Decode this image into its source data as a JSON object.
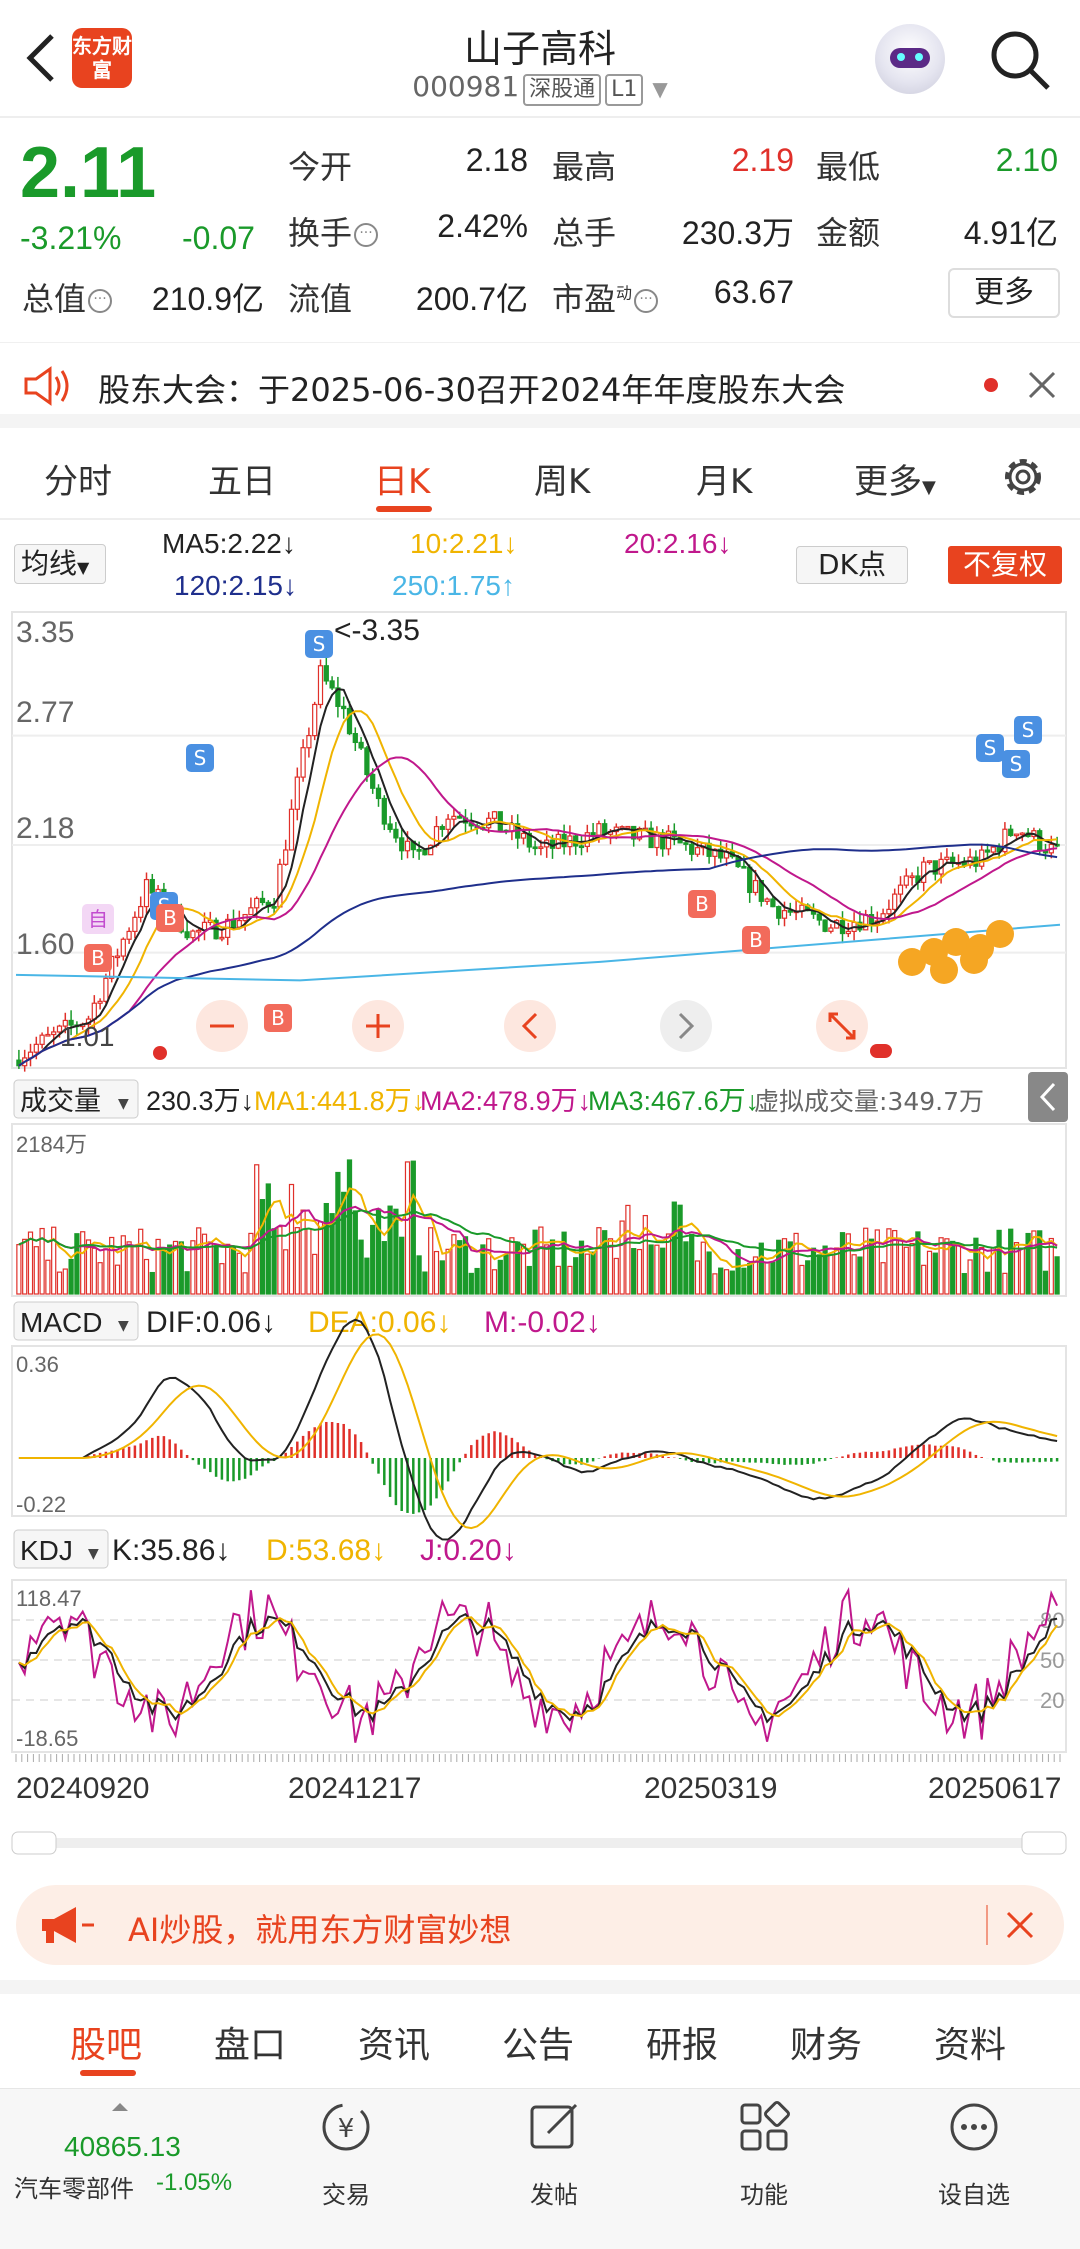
{
  "header": {
    "logo_text": "东方财富",
    "title": "山子高科",
    "code": "000981",
    "tag1": "深股通",
    "tag2": "L1"
  },
  "quote": {
    "price": "2.11",
    "change_pct": "-3.21%",
    "change_abs": "-0.07",
    "open_label": "今开",
    "open": "2.18",
    "high_label": "最高",
    "high": "2.19",
    "low_label": "最低",
    "low": "2.10",
    "turnover_label": "换手",
    "turnover": "2.42%",
    "volume_label": "总手",
    "volume": "230.3万",
    "amount_label": "金额",
    "amount": "4.91亿",
    "mktcap_label": "总值",
    "mktcap": "210.9亿",
    "float_label": "流值",
    "float": "200.7亿",
    "pe_label": "市盈",
    "pe_sup": "动",
    "pe": "63.67",
    "more": "更多"
  },
  "notice": {
    "text": "股东大会：于2025-06-30召开2024年年度股东大会"
  },
  "tabs": [
    "分时",
    "五日",
    "日K",
    "周K",
    "月K",
    "更多"
  ],
  "active_tab": "日K",
  "kline": {
    "indicator": "均线",
    "ma5": "MA5:2.22↓",
    "ma10": "10:2.21↓",
    "ma20": "20:2.16↓",
    "ma120": "120:2.15↓",
    "ma250": "250:1.75↑",
    "dk": "DK点",
    "fq": "不复权",
    "y_labels": [
      "3.35",
      "2.77",
      "2.18",
      "1.60",
      "1.01"
    ],
    "max_label": "<-3.35",
    "min_label": "1.01"
  },
  "volume": {
    "name": "成交量",
    "value": "230.3万↓",
    "ma1": "MA1:441.8万↓",
    "ma2": "MA2:478.9万↓",
    "ma3": "MA3:467.6万↓",
    "virtual": "虚拟成交量:349.7万",
    "max": "2184万"
  },
  "macd": {
    "name": "MACD",
    "dif": "DIF:0.06↓",
    "dea": "DEA:0.06↓",
    "m": "M:-0.02↓",
    "top": "0.36",
    "bottom": "-0.22"
  },
  "kdj": {
    "name": "KDJ",
    "k": "K:35.86↓",
    "d": "D:53.68↓",
    "j": "J:0.20↓",
    "top": "118.47",
    "bottom": "-18.65",
    "r80": "80",
    "r50": "50",
    "r20": "20"
  },
  "dates": [
    "20240920",
    "20241217",
    "20250319",
    "20250617"
  ],
  "ad": {
    "text": "AI炒股，就用东方财富妙想"
  },
  "bottom_tabs": [
    "股吧",
    "盘口",
    "资讯",
    "公告",
    "研报",
    "财务",
    "资料"
  ],
  "footer": {
    "index_value": "40865.13",
    "index_name": "汽车零部件",
    "index_pct": "-1.05%",
    "items": [
      "交易",
      "发帖",
      "功能",
      "设自选"
    ]
  },
  "colors": {
    "up": "#e0302a",
    "down": "#1a9a2a",
    "accent": "#e8431f"
  }
}
